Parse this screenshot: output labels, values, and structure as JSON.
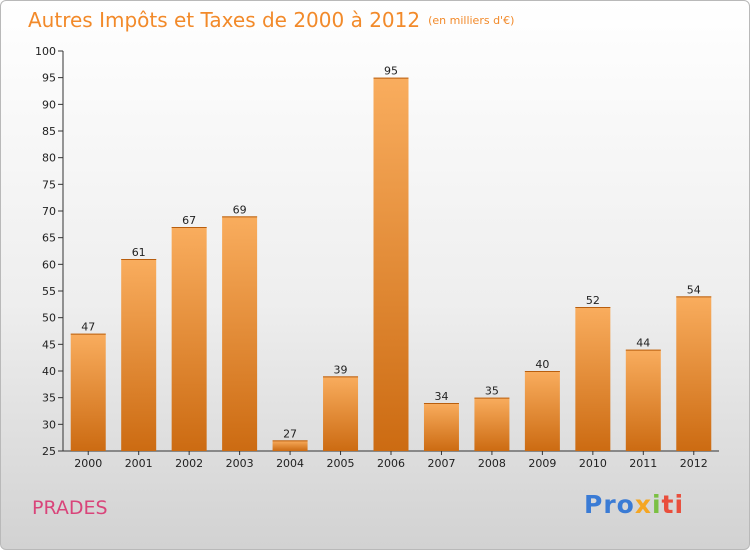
{
  "header": {
    "title": "Autres Impôts et Taxes de 2000 à 2012",
    "unit": "(en milliers d'€)"
  },
  "commune": "PRADES",
  "logo": {
    "part1": "Pro",
    "part2": "x",
    "part3": "i",
    "part4": "ti"
  },
  "colors": {
    "bar_light": "#f7a955",
    "bar_dark": "#cf6e14",
    "title": "#f28a2a",
    "commune": "#d9447a"
  },
  "chart_data": {
    "type": "bar",
    "title": "Autres Impôts et Taxes de 2000 à 2012",
    "xlabel": "",
    "ylabel": "",
    "categories": [
      "2000",
      "2001",
      "2002",
      "2003",
      "2004",
      "2005",
      "2006",
      "2007",
      "2008",
      "2009",
      "2010",
      "2011",
      "2012"
    ],
    "values": [
      47,
      61,
      67,
      69,
      27,
      39,
      95,
      34,
      35,
      40,
      52,
      44,
      54
    ],
    "ylim": [
      25,
      100
    ],
    "yticks": [
      25,
      30,
      35,
      40,
      45,
      50,
      55,
      60,
      65,
      70,
      75,
      80,
      85,
      90,
      95,
      100
    ],
    "grid": false,
    "legend": "none"
  }
}
